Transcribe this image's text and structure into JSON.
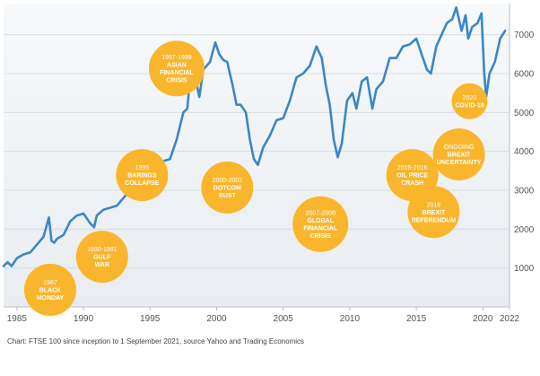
{
  "chart_data": {
    "type": "line",
    "title": "",
    "xlabel": "",
    "ylabel": "",
    "xlim": [
      1984,
      2022
    ],
    "ylim": [
      0,
      7800
    ],
    "x_ticks": [
      1985,
      1990,
      1995,
      2000,
      2005,
      2010,
      2015,
      2020,
      2022
    ],
    "x_tick_labels": [
      "1985",
      "1990",
      "1995",
      "2000",
      "2005",
      "2010",
      "2015",
      "2020",
      "2022"
    ],
    "y_ticks": [
      1000,
      2000,
      3000,
      4000,
      5000,
      6000,
      7000
    ],
    "y_tick_labels": [
      "1000",
      "2000",
      "3000",
      "4000",
      "5000",
      "6000",
      "7000"
    ],
    "grid": true,
    "legend": "none",
    "line_color": "#3b86c8",
    "series": [
      {
        "name": "",
        "x": [
          1984.0,
          1984.3,
          1984.6,
          1985.0,
          1985.5,
          1986.0,
          1986.5,
          1987.0,
          1987.4,
          1987.6,
          1987.8,
          1988.0,
          1988.5,
          1989.0,
          1989.5,
          1990.0,
          1990.5,
          1990.8,
          1991.0,
          1991.5,
          1992.0,
          1992.5,
          1993.0,
          1993.5,
          1994.0,
          1994.3,
          1994.6,
          1995.0,
          1995.5,
          1996.0,
          1996.5,
          1997.0,
          1997.5,
          1997.8,
          1998.0,
          1998.4,
          1998.7,
          1999.0,
          1999.5,
          1999.9,
          2000.2,
          2000.5,
          2000.8,
          2001.2,
          2001.5,
          2001.8,
          2002.2,
          2002.5,
          2002.8,
          2003.1,
          2003.5,
          2004.0,
          2004.5,
          2005.0,
          2005.5,
          2006.0,
          2006.5,
          2007.0,
          2007.5,
          2007.9,
          2008.2,
          2008.5,
          2008.8,
          2009.1,
          2009.4,
          2009.8,
          2010.2,
          2010.5,
          2010.9,
          2011.3,
          2011.7,
          2012.0,
          2012.5,
          2013.0,
          2013.5,
          2014.0,
          2014.5,
          2015.0,
          2015.4,
          2015.8,
          2016.1,
          2016.5,
          2016.9,
          2017.3,
          2017.7,
          2018.0,
          2018.4,
          2018.7,
          2018.9,
          2019.2,
          2019.6,
          2019.9,
          2020.1,
          2020.25,
          2020.5,
          2020.9,
          2021.3,
          2021.67
        ],
        "y": [
          1050,
          1150,
          1050,
          1250,
          1350,
          1400,
          1600,
          1800,
          2300,
          1700,
          1650,
          1750,
          1850,
          2200,
          2350,
          2400,
          2150,
          2050,
          2350,
          2500,
          2550,
          2600,
          2800,
          3000,
          3350,
          3100,
          3000,
          3100,
          3550,
          3750,
          3800,
          4300,
          5000,
          5100,
          5850,
          5900,
          5400,
          6100,
          6300,
          6800,
          6500,
          6350,
          6300,
          5700,
          5200,
          5200,
          5000,
          4300,
          3800,
          3650,
          4100,
          4400,
          4800,
          4850,
          5300,
          5900,
          6000,
          6200,
          6700,
          6400,
          5700,
          5200,
          4300,
          3850,
          4200,
          5300,
          5500,
          5100,
          5800,
          5900,
          5100,
          5600,
          5800,
          6400,
          6400,
          6700,
          6750,
          6900,
          6500,
          6100,
          6000,
          6700,
          7000,
          7300,
          7400,
          7700,
          7100,
          7500,
          6900,
          7200,
          7300,
          7550,
          6000,
          5400,
          6000,
          6300,
          6900,
          7100
        ]
      }
    ],
    "annotations": [
      {
        "lines": [
          "1987",
          "BLACK",
          "MONDAY"
        ],
        "year": 1987.5,
        "value": 440
      },
      {
        "lines": [
          "1990-1991",
          "GULF",
          "WAR"
        ],
        "year": 1991.4,
        "value": 1290
      },
      {
        "lines": [
          "1995",
          "BARINGS",
          "COLLAPSE"
        ],
        "year": 1994.4,
        "value": 3390
      },
      {
        "lines": [
          "1997-1999",
          "ASIAN",
          "FINANCIAL",
          "CRISIS"
        ],
        "year": 1997.0,
        "value": 6130
      },
      {
        "lines": [
          "2000-2003",
          "DOTCOM",
          "BUST"
        ],
        "year": 2000.8,
        "value": 3070
      },
      {
        "lines": [
          "2007-2008",
          "GLOBAL",
          "FINANCIAL",
          "CRISIS"
        ],
        "year": 2007.8,
        "value": 2130
      },
      {
        "lines": [
          "2015-2016",
          "OIL PRICE",
          "CRASH"
        ],
        "year": 2014.7,
        "value": 3390
      },
      {
        "lines": [
          "2016",
          "BREXIT",
          "REFERENDUM"
        ],
        "year": 2016.3,
        "value": 2440
      },
      {
        "lines": [
          "ONGOING",
          "BREXIT",
          "UNCERTAINTY"
        ],
        "year": 2018.2,
        "value": 3920
      },
      {
        "lines": [
          "2020",
          "COVID-19"
        ],
        "year": 2019.0,
        "value": 5290
      }
    ]
  },
  "caption": "Chart: FTSE 100 since inception to 1 September 2021, source Yahoo and Trading Economics"
}
